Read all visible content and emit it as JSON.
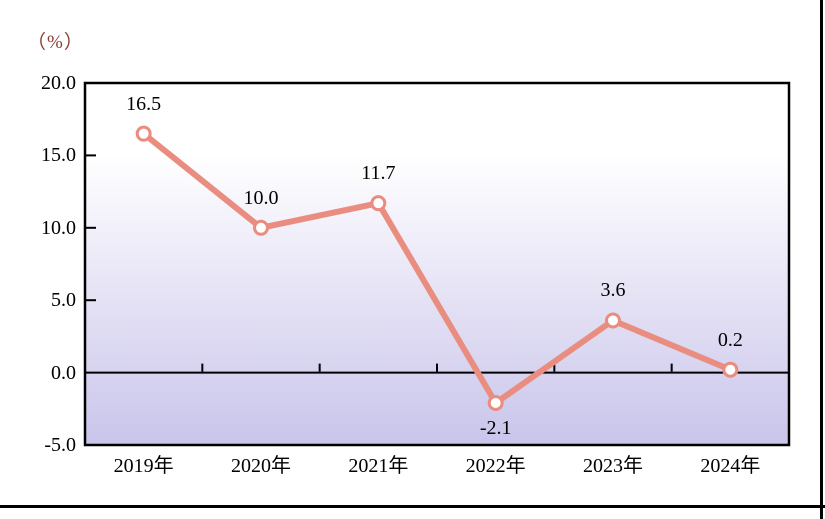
{
  "unit_label": "（%）",
  "chart_data": {
    "type": "line",
    "title": "",
    "categories": [
      "2019年",
      "2020年",
      "2021年",
      "2022年",
      "2023年",
      "2024年"
    ],
    "values": [
      16.5,
      10.0,
      11.7,
      -2.1,
      3.6,
      0.2
    ],
    "point_labels": [
      "16.5",
      "10.0",
      "11.7",
      "-2.1",
      "3.6",
      "0.2"
    ],
    "ytick_labels": [
      "20.0",
      "15.0",
      "10.0",
      "5.0",
      "0.0",
      "-5.0"
    ],
    "ytick_values": [
      20,
      15,
      10,
      5,
      0,
      -5
    ],
    "ylim": [
      -5,
      20
    ],
    "xlabel": "",
    "ylabel": "（%）",
    "legend_position": "none",
    "grid": "off",
    "colors": {
      "line": "#e98d80",
      "marker_fill": "#ffffff",
      "axis": "#000000",
      "text": "#000000",
      "unit_label": "#8b3d33",
      "plot_bg_top": "#ffffff",
      "plot_bg_bottom": "#c9c5eb"
    }
  }
}
